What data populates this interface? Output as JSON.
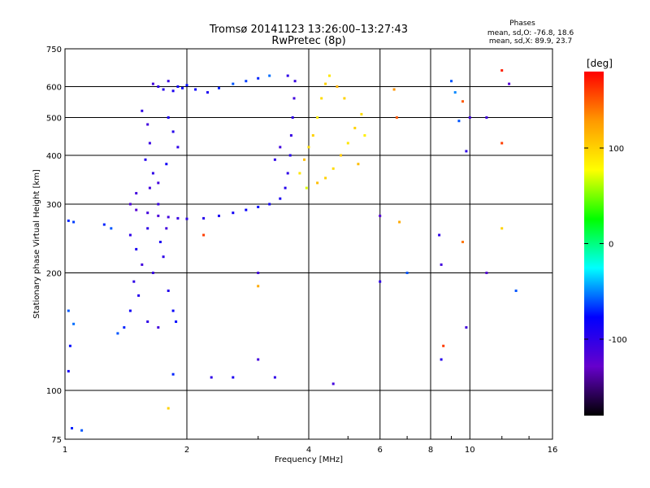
{
  "chart_data": {
    "type": "scatter",
    "title": "Tromsø 20141123 13:26:00–13:27:43",
    "subtitle": "RwPretec (8p)",
    "xlabel": "Frequency [MHz]",
    "ylabel": "Stationary phase Virtual Height [km]",
    "x_scale": "log",
    "y_scale": "log",
    "xlim": [
      1,
      16
    ],
    "ylim": [
      75,
      750
    ],
    "x_ticks": [
      1,
      2,
      4,
      6,
      8,
      10,
      16
    ],
    "y_ticks": [
      75,
      100,
      200,
      300,
      400,
      500,
      600,
      750
    ],
    "grid": true,
    "phases_header": "Phases",
    "phases_lines": [
      "mean, sd,O: -76.8, 18.6",
      "mean, sd,X: 89.9, 23.7"
    ],
    "colorbar": {
      "label": "[deg]",
      "range": [
        -180,
        180
      ],
      "ticks": [
        100,
        0,
        -100
      ],
      "colors": [
        "#000000",
        "#6600cc",
        "#0000ff",
        "#00ffff",
        "#00ff00",
        "#ffff00",
        "#ff9900",
        "#ff0000"
      ]
    },
    "series": [
      {
        "points": [
          [
            1.65,
            610,
            -110
          ],
          [
            1.7,
            600,
            -100
          ],
          [
            1.75,
            590,
            -95
          ],
          [
            1.8,
            620,
            -105
          ],
          [
            1.85,
            585,
            -90
          ],
          [
            1.9,
            600,
            -85
          ],
          [
            1.95,
            595,
            -80
          ],
          [
            2.0,
            605,
            -75
          ],
          [
            2.1,
            590,
            -80
          ],
          [
            2.25,
            580,
            -90
          ],
          [
            2.4,
            595,
            -70
          ],
          [
            2.6,
            610,
            -60
          ],
          [
            2.8,
            620,
            -65
          ],
          [
            3.0,
            630,
            -70
          ],
          [
            3.2,
            640,
            -55
          ],
          [
            1.55,
            520,
            -100
          ],
          [
            1.6,
            480,
            -110
          ],
          [
            1.62,
            430,
            -105
          ],
          [
            1.58,
            390,
            -95
          ],
          [
            1.65,
            360,
            -100
          ],
          [
            1.7,
            340,
            -110
          ],
          [
            1.8,
            500,
            -90
          ],
          [
            1.85,
            460,
            -95
          ],
          [
            1.9,
            420,
            -100
          ],
          [
            1.78,
            380,
            -85
          ],
          [
            1.5,
            320,
            -110
          ],
          [
            1.45,
            300,
            -115
          ],
          [
            1.5,
            290,
            -120
          ],
          [
            1.6,
            285,
            -110
          ],
          [
            1.7,
            280,
            -115
          ],
          [
            1.8,
            278,
            -110
          ],
          [
            1.9,
            276,
            -105
          ],
          [
            2.0,
            275,
            -100
          ],
          [
            2.2,
            276,
            -95
          ],
          [
            2.4,
            280,
            -90
          ],
          [
            2.6,
            285,
            -85
          ],
          [
            2.8,
            290,
            -80
          ],
          [
            3.0,
            295,
            -75
          ],
          [
            3.2,
            300,
            -85
          ],
          [
            3.4,
            310,
            -90
          ],
          [
            3.5,
            330,
            -95
          ],
          [
            3.55,
            360,
            -100
          ],
          [
            3.6,
            400,
            -95
          ],
          [
            3.62,
            450,
            -105
          ],
          [
            3.65,
            500,
            -100
          ],
          [
            3.68,
            560,
            -110
          ],
          [
            3.7,
            620,
            -105
          ],
          [
            3.55,
            640,
            -100
          ],
          [
            3.4,
            420,
            -110
          ],
          [
            3.3,
            390,
            -100
          ],
          [
            1.45,
            250,
            -100
          ],
          [
            1.5,
            230,
            -90
          ],
          [
            1.55,
            210,
            -110
          ],
          [
            1.48,
            190,
            -100
          ],
          [
            1.52,
            175,
            -95
          ],
          [
            1.45,
            160,
            -85
          ],
          [
            1.6,
            150,
            -100
          ],
          [
            1.7,
            145,
            -110
          ],
          [
            1.65,
            200,
            -105
          ],
          [
            1.75,
            220,
            -100
          ],
          [
            1.8,
            180,
            -95
          ],
          [
            1.72,
            240,
            -90
          ],
          [
            1.85,
            160,
            -80
          ],
          [
            1.78,
            260,
            -110
          ],
          [
            1.4,
            145,
            -70
          ],
          [
            1.35,
            140,
            -60
          ],
          [
            1.6,
            260,
            -100
          ],
          [
            1.7,
            300,
            -105
          ],
          [
            1.62,
            330,
            -110
          ],
          [
            1.88,
            150,
            -75
          ],
          [
            1.02,
            272,
            -70
          ],
          [
            1.05,
            270,
            -65
          ],
          [
            1.02,
            160,
            -60
          ],
          [
            1.03,
            130,
            -75
          ],
          [
            1.05,
            148,
            -55
          ],
          [
            1.02,
            112,
            -85
          ],
          [
            1.04,
            80,
            -70
          ],
          [
            1.1,
            79,
            -60
          ],
          [
            1.25,
            266,
            -70
          ],
          [
            1.3,
            260,
            -60
          ],
          [
            3.8,
            360,
            90
          ],
          [
            3.9,
            390,
            110
          ],
          [
            4.0,
            420,
            95
          ],
          [
            4.1,
            450,
            100
          ],
          [
            4.2,
            500,
            85
          ],
          [
            4.3,
            560,
            95
          ],
          [
            4.4,
            610,
            100
          ],
          [
            4.5,
            640,
            90
          ],
          [
            4.2,
            340,
            110
          ],
          [
            4.4,
            350,
            100
          ],
          [
            4.6,
            370,
            95
          ],
          [
            4.8,
            400,
            105
          ],
          [
            5.0,
            430,
            90
          ],
          [
            5.2,
            470,
            100
          ],
          [
            5.4,
            510,
            95
          ],
          [
            5.5,
            450,
            85
          ],
          [
            5.3,
            380,
            110
          ],
          [
            4.9,
            560,
            100
          ],
          [
            4.7,
            600,
            115
          ],
          [
            3.95,
            330,
            70
          ],
          [
            6.5,
            590,
            130
          ],
          [
            6.6,
            500,
            150
          ],
          [
            6.7,
            270,
            120
          ],
          [
            6.0,
            280,
            -120
          ],
          [
            6.0,
            190,
            -100
          ],
          [
            7.0,
            200,
            -60
          ],
          [
            8.4,
            250,
            -100
          ],
          [
            8.5,
            210,
            -110
          ],
          [
            8.6,
            130,
            160
          ],
          [
            8.5,
            120,
            -95
          ],
          [
            9.0,
            620,
            -60
          ],
          [
            9.2,
            580,
            -50
          ],
          [
            9.4,
            490,
            -60
          ],
          [
            9.6,
            550,
            150
          ],
          [
            9.6,
            240,
            140
          ],
          [
            9.8,
            410,
            -100
          ],
          [
            10.0,
            500,
            -110
          ],
          [
            9.8,
            145,
            -110
          ],
          [
            11.0,
            200,
            -120
          ],
          [
            11.0,
            500,
            -110
          ],
          [
            12.0,
            660,
            170
          ],
          [
            12.5,
            610,
            -120
          ],
          [
            12.0,
            430,
            160
          ],
          [
            13.0,
            180,
            -60
          ],
          [
            12.0,
            260,
            100
          ],
          [
            2.2,
            250,
            160
          ],
          [
            2.3,
            108,
            -100
          ],
          [
            2.6,
            108,
            -90
          ],
          [
            3.0,
            200,
            -110
          ],
          [
            3.0,
            185,
            120
          ],
          [
            3.0,
            120,
            -110
          ],
          [
            3.3,
            108,
            -100
          ],
          [
            4.6,
            104,
            -110
          ],
          [
            1.85,
            110,
            -70
          ],
          [
            1.8,
            90,
            100
          ]
        ]
      }
    ]
  }
}
